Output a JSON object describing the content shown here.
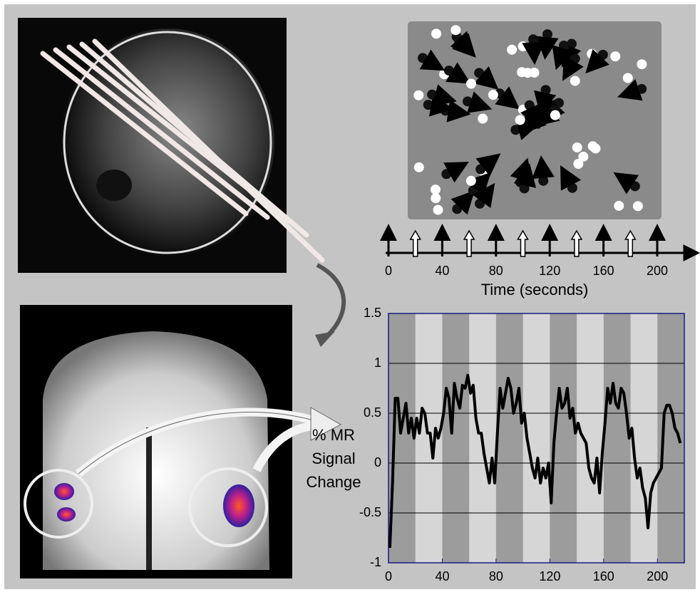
{
  "timeline": {
    "xlabel": "Time (seconds)",
    "xlim": [
      0,
      215
    ],
    "xticks": [
      0,
      40,
      80,
      120,
      160,
      200
    ],
    "open_events": [
      20,
      60,
      100,
      140,
      180
    ]
  },
  "chart_data": {
    "type": "line",
    "ylabel_lines": [
      "% MR",
      "Signal",
      "Change"
    ],
    "xlim": [
      0,
      220
    ],
    "xticks": [
      0,
      40,
      80,
      120,
      160,
      200
    ],
    "ylim": [
      -1,
      1.5
    ],
    "yticks": [
      -1,
      -0.5,
      0,
      0.5,
      1,
      1.5
    ],
    "grid": true,
    "shaded_periods": [
      [
        0,
        20
      ],
      [
        40,
        60
      ],
      [
        80,
        100
      ],
      [
        120,
        140
      ],
      [
        160,
        180
      ],
      [
        200,
        220
      ]
    ],
    "color": "#000000",
    "x": [
      1,
      3,
      5,
      7,
      9,
      11,
      13,
      15,
      17,
      19,
      21,
      23,
      25,
      27,
      29,
      31,
      33,
      35,
      37,
      39,
      41,
      43,
      45,
      47,
      49,
      51,
      53,
      55,
      57,
      59,
      61,
      63,
      65,
      67,
      69,
      71,
      73,
      75,
      77,
      79,
      81,
      83,
      85,
      87,
      89,
      91,
      93,
      95,
      97,
      99,
      101,
      103,
      105,
      107,
      109,
      111,
      113,
      115,
      117,
      119,
      121,
      123,
      125,
      127,
      129,
      131,
      133,
      135,
      137,
      139,
      141,
      143,
      145,
      147,
      149,
      151,
      153,
      155,
      157,
      159,
      161,
      163,
      165,
      167,
      169,
      171,
      173,
      175,
      177,
      179,
      181,
      183,
      185,
      187,
      189,
      191,
      193,
      195,
      197,
      199,
      201,
      203,
      205,
      207,
      209,
      211,
      213,
      215,
      217
    ],
    "values": [
      -0.85,
      -0.2,
      0.65,
      0.65,
      0.3,
      0.45,
      0.6,
      0.3,
      0.45,
      0.25,
      0.45,
      0.3,
      0.55,
      0.5,
      0.3,
      0.3,
      0.05,
      0.35,
      0.25,
      0.35,
      0.5,
      0.75,
      0.65,
      0.3,
      0.8,
      0.65,
      0.55,
      0.78,
      0.75,
      0.88,
      0.7,
      0.78,
      0.45,
      0.3,
      0.3,
      0.1,
      -0.05,
      -0.2,
      0.05,
      -0.2,
      0.3,
      0.75,
      0.55,
      0.7,
      0.85,
      0.75,
      0.5,
      0.6,
      0.75,
      0.4,
      0.5,
      0.25,
      0.1,
      -0.05,
      -0.15,
      0.05,
      -0.2,
      -0.05,
      -0.15,
      0.0,
      -0.4,
      0.2,
      0.5,
      0.75,
      0.55,
      0.6,
      0.75,
      0.45,
      0.55,
      0.3,
      0.4,
      0.3,
      0.25,
      0.2,
      -0.05,
      -0.15,
      -0.2,
      0.05,
      -0.3,
      0.1,
      0.4,
      0.75,
      0.6,
      0.8,
      0.6,
      0.55,
      0.75,
      0.7,
      0.5,
      0.25,
      0.35,
      0.05,
      -0.15,
      -0.05,
      -0.25,
      -0.35,
      -0.65,
      -0.3,
      -0.2,
      -0.15,
      -0.1,
      -0.05,
      0.5,
      0.58,
      0.58,
      0.5,
      0.35,
      0.3,
      0.2
    ]
  }
}
